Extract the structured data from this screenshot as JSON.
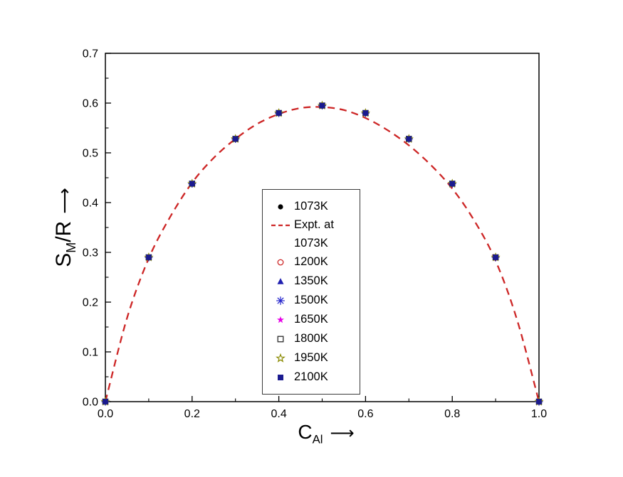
{
  "axes": {
    "x_label": {
      "base": "C",
      "sub": "Al",
      "arrow": "⟶"
    },
    "y_label": {
      "base": "S",
      "sub": "M",
      "rest": "/R",
      "arrow": "⟶"
    }
  },
  "chart_data": {
    "type": "scatter",
    "title": "",
    "xlabel": "C_Al",
    "ylabel": "S_M/R",
    "xlim": [
      0,
      1
    ],
    "ylim": [
      0,
      0.7
    ],
    "grid": false,
    "legend_position": "center",
    "x_major": [
      0,
      0.2,
      0.4,
      0.6,
      0.8,
      1
    ],
    "x_tick_labels": [
      "0.0",
      "0.2",
      "0.4",
      "0.6",
      "0.8",
      "1.0"
    ],
    "x_minor": [
      0.1,
      0.3,
      0.5,
      0.7,
      0.9
    ],
    "y_major": [
      0,
      0.1,
      0.2,
      0.3,
      0.4,
      0.5,
      0.6,
      0.7
    ],
    "y_tick_labels": [
      "0.0",
      "0.1",
      "0.2",
      "0.3",
      "0.4",
      "0.5",
      "0.6",
      "0.7"
    ],
    "y_minor": [
      0.05,
      0.15,
      0.25,
      0.35,
      0.45,
      0.55,
      0.65
    ],
    "x": [
      0,
      0.1,
      0.2,
      0.3,
      0.4,
      0.5,
      0.6,
      0.7,
      0.8,
      0.9,
      1
    ],
    "shared_values": [
      0,
      0.29,
      0.438,
      0.528,
      0.58,
      0.595,
      0.58,
      0.528,
      0.438,
      0.29,
      0
    ],
    "series": [
      {
        "name": "1073K",
        "marker": "filled-circle",
        "color": "#000000"
      },
      {
        "name": "1200K",
        "marker": "open-circle",
        "color": "#cd2626"
      },
      {
        "name": "1350K",
        "marker": "filled-triangle",
        "color": "#2020b0"
      },
      {
        "name": "1500K",
        "marker": "asterisk",
        "color": "#2424cc"
      },
      {
        "name": "1650K",
        "marker": "filled-star",
        "color": "#e600e6"
      },
      {
        "name": "1800K",
        "marker": "open-square",
        "color": "#2a2a2a"
      },
      {
        "name": "1950K",
        "marker": "open-star",
        "color": "#8a8a00"
      },
      {
        "name": "2100K",
        "marker": "filled-square",
        "color": "#1a1a90"
      }
    ],
    "curve": {
      "name": "Expt. at 1073K",
      "style": "dashed",
      "color": "#cd2626",
      "x": [
        0,
        0.05,
        0.1,
        0.15,
        0.2,
        0.25,
        0.3,
        0.35,
        0.4,
        0.45,
        0.5,
        0.55,
        0.6,
        0.65,
        0.7,
        0.75,
        0.8,
        0.85,
        0.9,
        0.95,
        1
      ],
      "y": [
        0,
        0.168,
        0.288,
        0.372,
        0.44,
        0.49,
        0.528,
        0.558,
        0.578,
        0.59,
        0.592,
        0.586,
        0.57,
        0.546,
        0.515,
        0.476,
        0.428,
        0.365,
        0.283,
        0.163,
        0
      ]
    },
    "legend": {
      "entries": [
        {
          "label": "1073K",
          "marker": "filled-circle",
          "color": "#000000"
        },
        {
          "label": "Expt. at\n  1073K",
          "marker": "dashed-line",
          "color": "#cd2626"
        },
        {
          "label": "1200K",
          "marker": "open-circle",
          "color": "#cd2626"
        },
        {
          "label": "1350K",
          "marker": "filled-triangle",
          "color": "#2020b0"
        },
        {
          "label": "1500K",
          "marker": "asterisk",
          "color": "#2424cc"
        },
        {
          "label": "1650K",
          "marker": "filled-star",
          "color": "#e600e6"
        },
        {
          "label": "1800K",
          "marker": "open-square",
          "color": "#2a2a2a"
        },
        {
          "label": "1950K",
          "marker": "open-star",
          "color": "#8a8a00"
        },
        {
          "label": "2100K",
          "marker": "filled-square",
          "color": "#1a1a90"
        }
      ]
    }
  }
}
